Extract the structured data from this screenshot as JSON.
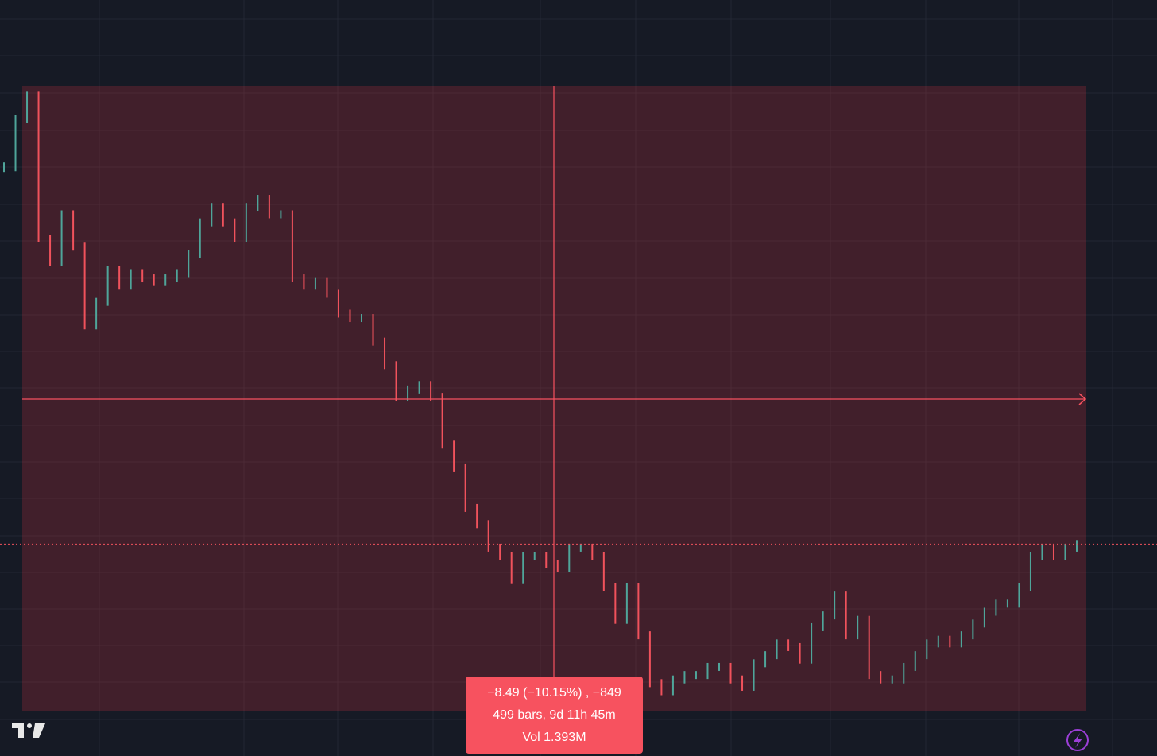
{
  "measure": {
    "lines": [
      "−8.49 (−10.15%) , −849",
      "499 bars, 9d 11h 45m",
      "Vol 1.393M"
    ]
  },
  "chart_data": {
    "type": "candlestick",
    "values": [
      82.54,
      83.19,
      83.51,
      81.57,
      81.25,
      81.9,
      81.46,
      80.39,
      80.71,
      81.14,
      80.93,
      81.09,
      81.03,
      80.98,
      81.03,
      81.09,
      81.36,
      81.79,
      82.0,
      81.79,
      81.57,
      82.0,
      82.11,
      81.9,
      81.9,
      81.03,
      80.93,
      80.98,
      80.82,
      80.55,
      80.49,
      80.49,
      80.17,
      79.85,
      79.42,
      79.52,
      79.58,
      79.42,
      78.77,
      78.45,
      77.91,
      77.69,
      77.37,
      77.26,
      76.93,
      77.26,
      77.26,
      77.15,
      77.09,
      77.37,
      77.37,
      77.26,
      76.83,
      76.39,
      76.83,
      76.18,
      75.53,
      75.42,
      75.58,
      75.64,
      75.64,
      75.75,
      75.75,
      75.58,
      75.48,
      75.8,
      75.91,
      76.07,
      76.02,
      75.85,
      76.29,
      76.45,
      76.72,
      76.18,
      76.39,
      75.64,
      75.58,
      75.58,
      75.75,
      75.91,
      76.07,
      76.12,
      76.07,
      76.18,
      76.34,
      76.5,
      76.61,
      76.61,
      76.83,
      77.26,
      77.37,
      77.26,
      77.37,
      77.42
    ],
    "ylim": [
      74.54,
      84.81
    ],
    "up_color": "#4fa59a",
    "down_color": "#f0525c",
    "last_price_line": true
  }
}
